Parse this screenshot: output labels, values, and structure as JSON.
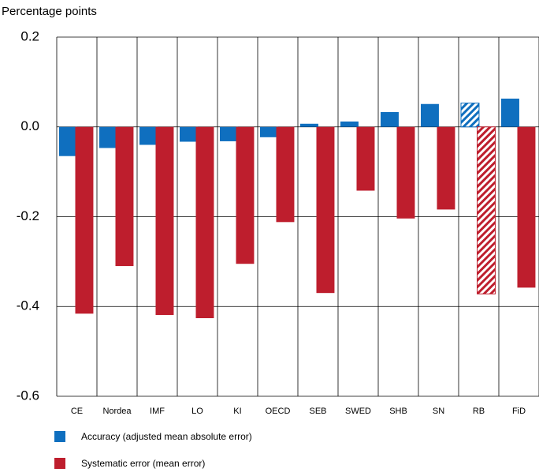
{
  "chart_data": {
    "type": "bar",
    "y_label": "Percentage points",
    "categories": [
      "CE",
      "Nordea",
      "IMF",
      "LO",
      "KI",
      "OECD",
      "SEB",
      "SWED",
      "SHB",
      "SN",
      "RB",
      "FiD"
    ],
    "series": [
      {
        "name": "Accuracy (adjusted mean absolute error)",
        "color": "#0f6fbf",
        "values": [
          -0.065,
          -0.047,
          -0.04,
          -0.033,
          -0.032,
          -0.023,
          0.007,
          0.012,
          0.033,
          0.051,
          0.053,
          0.063
        ],
        "hatched": [
          false,
          false,
          false,
          false,
          false,
          false,
          false,
          false,
          false,
          false,
          true,
          false
        ]
      },
      {
        "name": "Systematic error (mean error)",
        "color": "#be1e2d",
        "values": [
          -0.416,
          -0.31,
          -0.419,
          -0.426,
          -0.305,
          -0.212,
          -0.37,
          -0.142,
          -0.204,
          -0.184,
          -0.372,
          -0.358
        ],
        "hatched": [
          false,
          false,
          false,
          false,
          false,
          false,
          false,
          false,
          false,
          false,
          true,
          false
        ]
      }
    ],
    "ylim": [
      -0.6,
      0.2
    ],
    "yticks": [
      -0.6,
      -0.4,
      -0.2,
      {
        "value": 0,
        "label": "0.0"
      },
      0.2
    ],
    "grid": true
  }
}
